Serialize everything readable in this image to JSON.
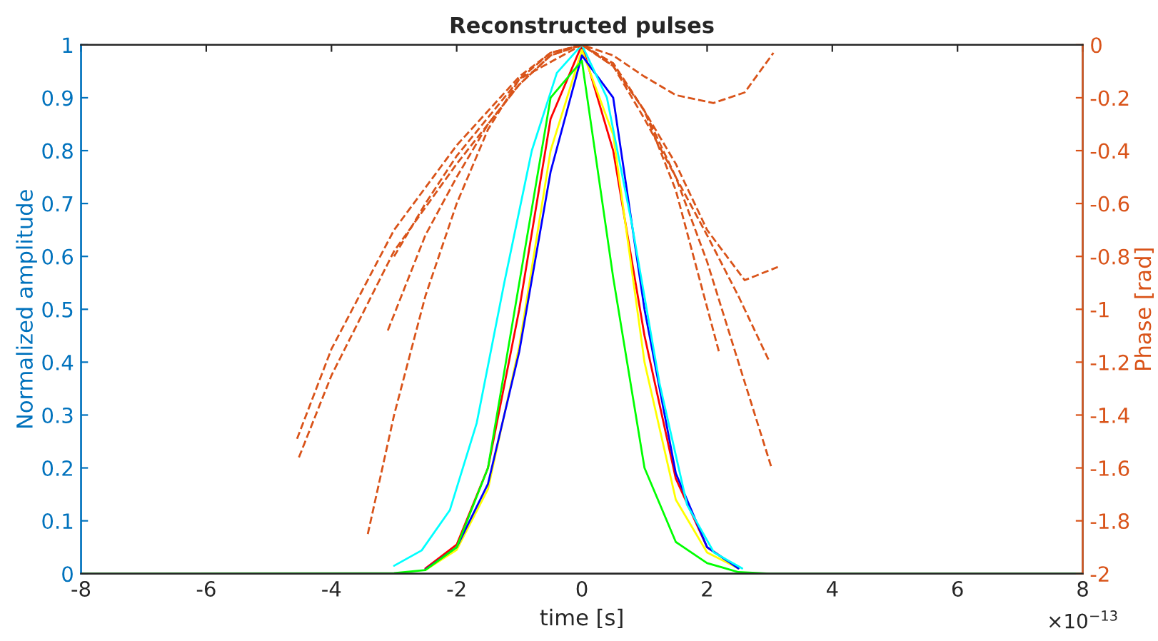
{
  "chart_data": {
    "type": "line",
    "title": "Reconstructed pulses",
    "xlabel": "time [s]",
    "ylabel": "Normalized amplitude",
    "y2label": "Phase [rad]",
    "annotations": [
      "×10$^{−13}$"
    ],
    "xlim": [
      -8,
      8
    ],
    "xticks": [
      -8,
      -6,
      -4,
      -2,
      0,
      2,
      4,
      6,
      8
    ],
    "ylim": [
      0,
      1
    ],
    "yticks": [
      0,
      0.1,
      0.2,
      0.3,
      0.4,
      0.5,
      0.6,
      0.7,
      0.8,
      0.9,
      1
    ],
    "y2lim": [
      -2,
      0
    ],
    "y2ticks": [
      {
        "value": -2,
        "label": "-2"
      },
      {
        "value": -1.8,
        "label": "-1.8"
      },
      {
        "value": -1.6,
        "label": "-1.6"
      },
      {
        "value": -1.4,
        "label": "-1.4"
      },
      {
        "value": -1.2,
        "label": "-1.2"
      },
      {
        "value": -1,
        "label": "-1"
      },
      {
        "value": -0.8,
        "label": "-0.8"
      },
      {
        "value": -0.6,
        "label": "-0.6"
      },
      {
        "value": -0.4,
        "label": "-0.4"
      },
      {
        "value": -0.2,
        "label": "-0.2"
      },
      0
    ],
    "grid": false,
    "legend": false,
    "marker": "none",
    "series": [
      {
        "color": "#ff0000",
        "line_style": "solid",
        "x": [
          -2.5,
          -2,
          -1.5,
          -1,
          -0.5,
          0,
          0.5,
          1,
          1.5,
          2,
          2.5
        ],
        "values": [
          0.01,
          0.055,
          0.2,
          0.5,
          0.86,
          1,
          0.8,
          0.45,
          0.18,
          0.05,
          0.01
        ]
      },
      {
        "color": "#ffff00",
        "line_style": "solid",
        "x": [
          -2.5,
          -2,
          -1.5,
          -1,
          -0.5,
          0,
          0.5,
          1,
          1.5,
          2,
          2.5
        ],
        "values": [
          0.007,
          0.045,
          0.16,
          0.43,
          0.8,
          0.99,
          0.83,
          0.4,
          0.14,
          0.04,
          0.01
        ]
      },
      {
        "color": "#0000ff",
        "line_style": "solid",
        "x": [
          -2.5,
          -2,
          -1.5,
          -1,
          -0.5,
          0,
          0.5,
          1,
          1.5,
          2,
          2.5
        ],
        "values": [
          0.008,
          0.05,
          0.17,
          0.42,
          0.76,
          0.98,
          0.9,
          0.5,
          0.19,
          0.05,
          0.01
        ]
      },
      {
        "color": "#00ffff",
        "line_style": "solid",
        "x": [
          -3,
          -2.56,
          -2.11,
          -1.68,
          -1.24,
          -0.8,
          -0.4,
          0,
          0.4,
          0.8,
          1.24,
          1.68,
          2.11,
          2.56
        ],
        "values": [
          0.015,
          0.044,
          0.12,
          0.285,
          0.55,
          0.8,
          0.947,
          1,
          0.9,
          0.66,
          0.36,
          0.13,
          0.04,
          0.01
        ]
      },
      {
        "color": "#00ff00",
        "line_style": "solid",
        "x": [
          -8,
          -3,
          -2.5,
          -2,
          -1.5,
          -1,
          -0.5,
          0,
          0.5,
          1,
          1.5,
          2,
          2.5,
          3,
          8
        ],
        "values": [
          0,
          0.001,
          0.007,
          0.05,
          0.2,
          0.55,
          0.9,
          0.97,
          0.56,
          0.2,
          0.06,
          0.02,
          0.003,
          0,
          0
        ]
      },
      {
        "color": "#d95319",
        "line_style": "dashed",
        "axis": "y2",
        "x": [
          -4.55,
          -4,
          -3,
          -2,
          -1,
          -0.5,
          0,
          0.5,
          1,
          1.5,
          2.1,
          2.6,
          3.06
        ],
        "values": [
          -1.49,
          -1.15,
          -0.7,
          -0.38,
          -0.12,
          -0.03,
          0,
          -0.04,
          -0.12,
          -0.19,
          -0.22,
          -0.18,
          -0.03
        ]
      },
      {
        "color": "#d95319",
        "line_style": "dashed",
        "axis": "y2",
        "x": [
          -4.52,
          -4,
          -3,
          -2,
          -1,
          -0.5,
          0,
          0.5,
          1,
          1.5,
          2,
          2.6,
          3.13
        ],
        "values": [
          -1.56,
          -1.25,
          -0.78,
          -0.45,
          -0.15,
          -0.04,
          0,
          -0.08,
          -0.25,
          -0.45,
          -0.7,
          -0.89,
          -0.84
        ]
      },
      {
        "color": "#d95319",
        "line_style": "dashed",
        "axis": "y2",
        "x": [
          -3.1,
          -2.5,
          -2,
          -1.5,
          -1,
          -0.5,
          0,
          0.5,
          1,
          1.5,
          2,
          2.5,
          3.03
        ],
        "values": [
          -1.08,
          -0.72,
          -0.5,
          -0.3,
          -0.15,
          -0.04,
          0,
          -0.07,
          -0.25,
          -0.5,
          -0.82,
          -1.2,
          -1.6
        ]
      },
      {
        "color": "#d95319",
        "line_style": "dashed",
        "axis": "y2",
        "x": [
          -3.42,
          -3,
          -2.5,
          -2,
          -1.5,
          -1,
          -0.5,
          0,
          0.5,
          1,
          1.5,
          2.2
        ],
        "values": [
          -1.85,
          -1.4,
          -0.95,
          -0.6,
          -0.32,
          -0.13,
          -0.03,
          0,
          -0.07,
          -0.25,
          -0.55,
          -1.17
        ]
      },
      {
        "color": "#d95319",
        "line_style": "dashed",
        "axis": "y2",
        "x": [
          -3,
          -2.5,
          -2,
          -1,
          0,
          0.5,
          1,
          1.5,
          2,
          2.5,
          2.98
        ],
        "values": [
          -0.8,
          -0.6,
          -0.42,
          -0.13,
          0,
          -0.08,
          -0.28,
          -0.5,
          -0.72,
          -0.95,
          -1.19
        ]
      }
    ]
  }
}
